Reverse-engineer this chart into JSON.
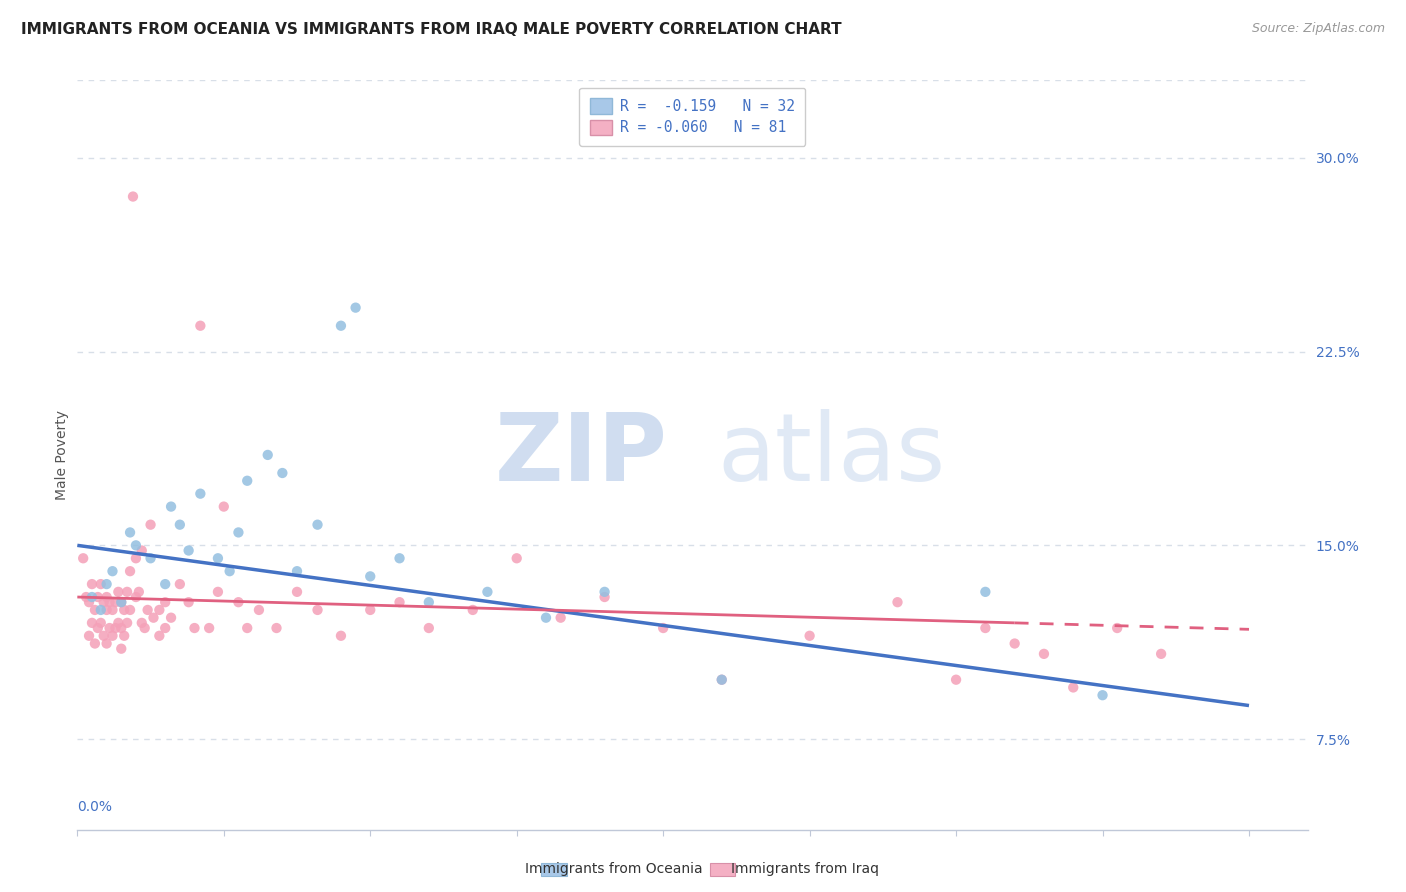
{
  "title": "IMMIGRANTS FROM OCEANIA VS IMMIGRANTS FROM IRAQ MALE POVERTY CORRELATION CHART",
  "source": "Source: ZipAtlas.com",
  "ylabel": "Male Poverty",
  "right_yticks": [
    "7.5%",
    "15.0%",
    "22.5%",
    "30.0%"
  ],
  "right_ytick_vals": [
    0.075,
    0.15,
    0.225,
    0.3
  ],
  "legend_r1": "R =  -0.159   N = 32",
  "legend_r2": "R = -0.060   N = 81",
  "legend_color1": "#a8c8e8",
  "legend_color2": "#f4b0c4",
  "watermark_zip": "ZIP",
  "watermark_atlas": "atlas",
  "blue_scatter_x": [
    0.005,
    0.008,
    0.01,
    0.012,
    0.015,
    0.018,
    0.02,
    0.025,
    0.03,
    0.032,
    0.035,
    0.038,
    0.042,
    0.048,
    0.052,
    0.055,
    0.058,
    0.065,
    0.07,
    0.075,
    0.082,
    0.09,
    0.095,
    0.1,
    0.11,
    0.12,
    0.14,
    0.16,
    0.18,
    0.22,
    0.31,
    0.35
  ],
  "blue_scatter_y": [
    0.13,
    0.125,
    0.135,
    0.14,
    0.128,
    0.155,
    0.15,
    0.145,
    0.135,
    0.165,
    0.158,
    0.148,
    0.17,
    0.145,
    0.14,
    0.155,
    0.175,
    0.185,
    0.178,
    0.14,
    0.158,
    0.235,
    0.242,
    0.138,
    0.145,
    0.128,
    0.132,
    0.122,
    0.132,
    0.098,
    0.132,
    0.092
  ],
  "pink_scatter_x": [
    0.002,
    0.003,
    0.004,
    0.004,
    0.005,
    0.005,
    0.006,
    0.006,
    0.007,
    0.007,
    0.008,
    0.008,
    0.009,
    0.009,
    0.01,
    0.01,
    0.01,
    0.011,
    0.011,
    0.012,
    0.012,
    0.013,
    0.013,
    0.014,
    0.014,
    0.015,
    0.015,
    0.015,
    0.016,
    0.016,
    0.017,
    0.017,
    0.018,
    0.018,
    0.019,
    0.02,
    0.02,
    0.021,
    0.022,
    0.022,
    0.023,
    0.024,
    0.025,
    0.026,
    0.028,
    0.028,
    0.03,
    0.03,
    0.032,
    0.035,
    0.038,
    0.04,
    0.042,
    0.045,
    0.048,
    0.05,
    0.055,
    0.058,
    0.062,
    0.068,
    0.075,
    0.082,
    0.09,
    0.1,
    0.11,
    0.12,
    0.135,
    0.15,
    0.165,
    0.18,
    0.2,
    0.22,
    0.25,
    0.28,
    0.3,
    0.31,
    0.32,
    0.33,
    0.34,
    0.355,
    0.37
  ],
  "pink_scatter_y": [
    0.145,
    0.13,
    0.128,
    0.115,
    0.135,
    0.12,
    0.125,
    0.112,
    0.13,
    0.118,
    0.135,
    0.12,
    0.128,
    0.115,
    0.13,
    0.125,
    0.112,
    0.128,
    0.118,
    0.125,
    0.115,
    0.128,
    0.118,
    0.132,
    0.12,
    0.128,
    0.118,
    0.11,
    0.125,
    0.115,
    0.132,
    0.12,
    0.14,
    0.125,
    0.285,
    0.145,
    0.13,
    0.132,
    0.12,
    0.148,
    0.118,
    0.125,
    0.158,
    0.122,
    0.125,
    0.115,
    0.128,
    0.118,
    0.122,
    0.135,
    0.128,
    0.118,
    0.235,
    0.118,
    0.132,
    0.165,
    0.128,
    0.118,
    0.125,
    0.118,
    0.132,
    0.125,
    0.115,
    0.125,
    0.128,
    0.118,
    0.125,
    0.145,
    0.122,
    0.13,
    0.118,
    0.098,
    0.115,
    0.128,
    0.098,
    0.118,
    0.112,
    0.108,
    0.095,
    0.118,
    0.108
  ],
  "blue_line_x": [
    0.0,
    0.4
  ],
  "blue_line_y": [
    0.15,
    0.088
  ],
  "pink_line_x": [
    0.0,
    0.32
  ],
  "pink_line_y": [
    0.13,
    0.12
  ],
  "xmin": 0.0,
  "xmax": 0.42,
  "ymin": 0.04,
  "ymax": 0.33,
  "dot_size": 55,
  "blue_dot_color": "#93bfe0",
  "pink_dot_color": "#f4a0b8",
  "blue_line_color": "#4472c4",
  "pink_line_color": "#e06080",
  "grid_color": "#d8dfe8",
  "background_color": "#ffffff",
  "title_fontsize": 11,
  "source_fontsize": 9,
  "axis_label_fontsize": 10,
  "tick_fontsize": 10,
  "legend_fontsize": 10.5
}
